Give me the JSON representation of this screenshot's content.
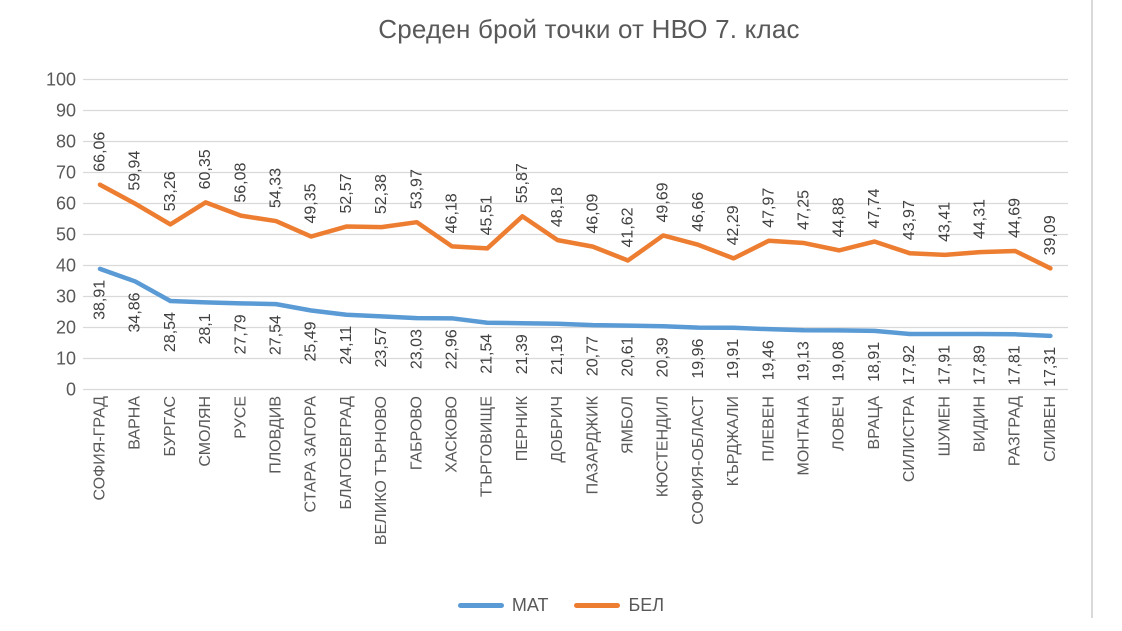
{
  "title": "Среден брой точки от НВО 7. клас",
  "colors": {
    "background": "#FFFFFF",
    "grid": "#D9D9D9",
    "axis_text": "#595959",
    "label_text": "#404040",
    "title_text": "#595959",
    "border": "#D9D9D9",
    "mat": "#5B9BD5",
    "bel": "#ED7D31"
  },
  "chart_data": {
    "type": "line",
    "title": "Среден брой точки от НВО 7. клас",
    "xlabel": "",
    "ylabel": "",
    "ylim": [
      0,
      100
    ],
    "yticks": [
      0,
      10,
      20,
      30,
      40,
      50,
      60,
      70,
      80,
      90,
      100
    ],
    "grid": true,
    "legend_position": "bottom",
    "data_labels": true,
    "label_rotation": -90,
    "categories": [
      "СОФИЯ-ГРАД",
      "ВАРНА",
      "БУРГАС",
      "СМОЛЯН",
      "РУСЕ",
      "ПЛОВДИВ",
      "СТАРА ЗАГОРА",
      "БЛАГОЕВГРАД",
      "ВЕЛИКО ТЪРНОВО",
      "ГАБРОВО",
      "ХАСКОВО",
      "ТЪРГОВИЩЕ",
      "ПЕРНИК",
      "ДОБРИЧ",
      "ПАЗАРДЖИК",
      "ЯМБОЛ",
      "КЮСТЕНДИЛ",
      "СОФИЯ-ОБЛАСТ",
      "КЪРДЖАЛИ",
      "ПЛЕВЕН",
      "МОНТАНА",
      "ЛОВЕЧ",
      "ВРАЦА",
      "СИЛИСТРА",
      "ШУМЕН",
      "ВИДИН",
      "РАЗГРАД",
      "СЛИВЕН"
    ],
    "series": [
      {
        "name": "МАТ",
        "color": "#5B9BD5",
        "label_position": "below",
        "values": [
          38.91,
          34.86,
          28.54,
          28.1,
          27.79,
          27.54,
          25.49,
          24.11,
          23.57,
          23.03,
          22.96,
          21.54,
          21.39,
          21.19,
          20.77,
          20.61,
          20.39,
          19.96,
          19.91,
          19.46,
          19.13,
          19.08,
          18.91,
          17.92,
          17.91,
          17.89,
          17.81,
          17.31
        ],
        "labels": [
          "38,91",
          "34,86",
          "28,54",
          "28,1",
          "27,79",
          "27,54",
          "25,49",
          "24,11",
          "23,57",
          "23,03",
          "22,96",
          "21,54",
          "21,39",
          "21,19",
          "20,77",
          "20,61",
          "20,39",
          "19,96",
          "19,91",
          "19,46",
          "19,13",
          "19,08",
          "18,91",
          "17,92",
          "17,91",
          "17,89",
          "17,81",
          "17,31"
        ]
      },
      {
        "name": "БЕЛ",
        "color": "#ED7D31",
        "label_position": "above",
        "values": [
          66.06,
          59.94,
          53.26,
          60.35,
          56.08,
          54.33,
          49.35,
          52.57,
          52.38,
          53.97,
          46.18,
          45.51,
          55.87,
          48.18,
          46.09,
          41.62,
          49.69,
          46.66,
          42.29,
          47.97,
          47.25,
          44.88,
          47.74,
          43.97,
          43.41,
          44.31,
          44.69,
          39.09
        ],
        "labels": [
          "66,06",
          "59,94",
          "53,26",
          "60,35",
          "56,08",
          "54,33",
          "49,35",
          "52,57",
          "52,38",
          "53,97",
          "46,18",
          "45,51",
          "55,87",
          "48,18",
          "46,09",
          "41,62",
          "49,69",
          "46,66",
          "42,29",
          "47,97",
          "47,25",
          "44,88",
          "47,74",
          "43,97",
          "43,41",
          "44,31",
          "44,69",
          "39,09"
        ]
      }
    ]
  }
}
